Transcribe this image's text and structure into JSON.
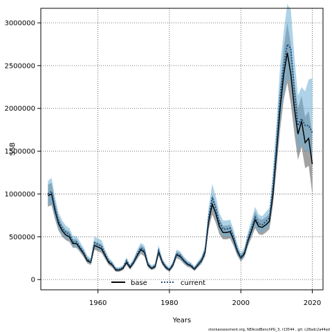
{
  "chart_data": {
    "type": "line",
    "title": "",
    "xlabel": "Years",
    "ylabel": "SSB",
    "xlim": [
      1944,
      2023
    ],
    "ylim": [
      -120000,
      3170000
    ],
    "x_ticks": [
      1960,
      1980,
      2000,
      2020
    ],
    "y_ticks": [
      0,
      500000,
      1000000,
      1500000,
      2000000,
      2500000,
      3000000
    ],
    "grid": true,
    "grid_style": "dotted",
    "legend_position": "bottom-center",
    "series": [
      {
        "name": "base",
        "color": "#000000",
        "line": "solid",
        "band_color": "#555555",
        "x": [
          1946,
          1947,
          1948,
          1949,
          1950,
          1951,
          1952,
          1953,
          1954,
          1955,
          1956,
          1957,
          1958,
          1959,
          1960,
          1961,
          1962,
          1963,
          1964,
          1965,
          1966,
          1967,
          1968,
          1969,
          1970,
          1971,
          1972,
          1973,
          1974,
          1975,
          1976,
          1977,
          1978,
          1979,
          1980,
          1981,
          1982,
          1983,
          1984,
          1985,
          1986,
          1987,
          1988,
          1989,
          1990,
          1991,
          1992,
          1993,
          1994,
          1995,
          1996,
          1997,
          1998,
          1999,
          2000,
          2001,
          2002,
          2003,
          2004,
          2005,
          2006,
          2007,
          2008,
          2009,
          2010,
          2011,
          2012,
          2013,
          2014,
          2015,
          2016,
          2017,
          2018,
          2019,
          2020
        ],
        "values": [
          980000,
          1000000,
          800000,
          650000,
          570000,
          520000,
          500000,
          420000,
          420000,
          360000,
          300000,
          220000,
          200000,
          400000,
          380000,
          360000,
          280000,
          200000,
          170000,
          110000,
          110000,
          130000,
          200000,
          140000,
          200000,
          280000,
          350000,
          320000,
          170000,
          130000,
          150000,
          320000,
          200000,
          140000,
          110000,
          170000,
          290000,
          270000,
          220000,
          180000,
          160000,
          120000,
          170000,
          220000,
          320000,
          680000,
          880000,
          770000,
          620000,
          550000,
          550000,
          560000,
          460000,
          330000,
          250000,
          300000,
          450000,
          570000,
          700000,
          620000,
          610000,
          640000,
          680000,
          1000000,
          1500000,
          2000000,
          2400000,
          2650000,
          2400000,
          2000000,
          1700000,
          1850000,
          1600000,
          1650000,
          1350000
        ],
        "lower": [
          850000,
          870000,
          700000,
          570000,
          500000,
          460000,
          440000,
          370000,
          370000,
          320000,
          260000,
          190000,
          170000,
          350000,
          330000,
          310000,
          240000,
          170000,
          140000,
          90000,
          90000,
          110000,
          170000,
          115000,
          170000,
          240000,
          300000,
          270000,
          140000,
          110000,
          125000,
          280000,
          170000,
          115000,
          90000,
          140000,
          250000,
          230000,
          185000,
          150000,
          135000,
          100000,
          140000,
          185000,
          270000,
          590000,
          760000,
          660000,
          530000,
          470000,
          470000,
          480000,
          390000,
          280000,
          210000,
          260000,
          390000,
          490000,
          600000,
          530000,
          520000,
          550000,
          590000,
          870000,
          1300000,
          1750000,
          2100000,
          2300000,
          2050000,
          1700000,
          1400000,
          1550000,
          1300000,
          1330000,
          1000000
        ],
        "upper": [
          1110000,
          1130000,
          900000,
          730000,
          640000,
          580000,
          560000,
          470000,
          470000,
          400000,
          340000,
          250000,
          230000,
          450000,
          430000,
          410000,
          320000,
          230000,
          200000,
          130000,
          130000,
          150000,
          230000,
          165000,
          230000,
          320000,
          400000,
          370000,
          200000,
          150000,
          175000,
          360000,
          230000,
          165000,
          130000,
          200000,
          330000,
          310000,
          255000,
          210000,
          185000,
          140000,
          200000,
          255000,
          370000,
          770000,
          1000000,
          880000,
          710000,
          630000,
          630000,
          640000,
          530000,
          380000,
          290000,
          340000,
          510000,
          650000,
          800000,
          710000,
          700000,
          730000,
          770000,
          1130000,
          1700000,
          2250000,
          2700000,
          3000000,
          2750000,
          2300000,
          2000000,
          2150000,
          1900000,
          1970000,
          1700000
        ]
      },
      {
        "name": "current",
        "color": "#1f4e79",
        "line": "dotted",
        "band_color": "#6baed6",
        "x": [
          1946,
          1947,
          1948,
          1949,
          1950,
          1951,
          1952,
          1953,
          1954,
          1955,
          1956,
          1957,
          1958,
          1959,
          1960,
          1961,
          1962,
          1963,
          1964,
          1965,
          1966,
          1967,
          1968,
          1969,
          1970,
          1971,
          1972,
          1973,
          1974,
          1975,
          1976,
          1977,
          1978,
          1979,
          1980,
          1981,
          1982,
          1983,
          1984,
          1985,
          1986,
          1987,
          1988,
          1989,
          1990,
          1991,
          1992,
          1993,
          1994,
          1995,
          1996,
          1997,
          1998,
          1999,
          2000,
          2001,
          2002,
          2003,
          2004,
          2005,
          2006,
          2007,
          2008,
          2009,
          2010,
          2011,
          2012,
          2013,
          2014,
          2015,
          2016,
          2017,
          2018,
          2019,
          2020
        ],
        "values": [
          1000000,
          1030000,
          830000,
          680000,
          600000,
          550000,
          530000,
          440000,
          440000,
          380000,
          320000,
          240000,
          210000,
          430000,
          410000,
          390000,
          300000,
          220000,
          180000,
          120000,
          120000,
          140000,
          220000,
          150000,
          210000,
          300000,
          370000,
          340000,
          180000,
          140000,
          160000,
          340000,
          210000,
          150000,
          115000,
          180000,
          300000,
          285000,
          230000,
          190000,
          170000,
          130000,
          180000,
          230000,
          340000,
          730000,
          960000,
          830000,
          670000,
          590000,
          590000,
          600000,
          490000,
          350000,
          260000,
          320000,
          480000,
          600000,
          730000,
          650000,
          640000,
          680000,
          720000,
          1100000,
          1600000,
          2150000,
          2500000,
          2750000,
          2700000,
          2200000,
          1800000,
          1880000,
          1800000,
          1800000,
          1720000
        ],
        "lower": [
          870000,
          890000,
          720000,
          590000,
          520000,
          480000,
          460000,
          380000,
          380000,
          330000,
          280000,
          210000,
          180000,
          370000,
          355000,
          335000,
          260000,
          190000,
          155000,
          100000,
          100000,
          120000,
          190000,
          125000,
          180000,
          260000,
          320000,
          290000,
          150000,
          120000,
          135000,
          295000,
          180000,
          125000,
          95000,
          150000,
          260000,
          245000,
          195000,
          160000,
          145000,
          110000,
          150000,
          195000,
          285000,
          640000,
          830000,
          710000,
          570000,
          500000,
          500000,
          510000,
          410000,
          295000,
          220000,
          275000,
          410000,
          520000,
          630000,
          560000,
          550000,
          585000,
          620000,
          950000,
          1380000,
          1850000,
          2150000,
          2350000,
          2300000,
          1850000,
          1500000,
          1580000,
          1500000,
          1500000,
          1400000
        ],
        "upper": [
          1150000,
          1190000,
          960000,
          780000,
          690000,
          630000,
          600000,
          510000,
          510000,
          440000,
          370000,
          280000,
          250000,
          500000,
          480000,
          460000,
          350000,
          260000,
          215000,
          145000,
          145000,
          165000,
          260000,
          180000,
          250000,
          350000,
          430000,
          400000,
          215000,
          165000,
          190000,
          400000,
          250000,
          180000,
          140000,
          215000,
          350000,
          330000,
          270000,
          225000,
          200000,
          155000,
          215000,
          270000,
          400000,
          850000,
          1120000,
          970000,
          780000,
          690000,
          690000,
          700000,
          580000,
          420000,
          310000,
          380000,
          560000,
          700000,
          850000,
          760000,
          740000,
          790000,
          840000,
          1280000,
          1850000,
          2500000,
          2900000,
          3220000,
          3150000,
          2600000,
          2150000,
          2250000,
          2200000,
          2340000,
          2350000
        ]
      }
    ],
    "footnote": "stockassessment.org,  NEAcodBenchPG_3,  r13544 ,  git:  c28adc2a44ad"
  }
}
